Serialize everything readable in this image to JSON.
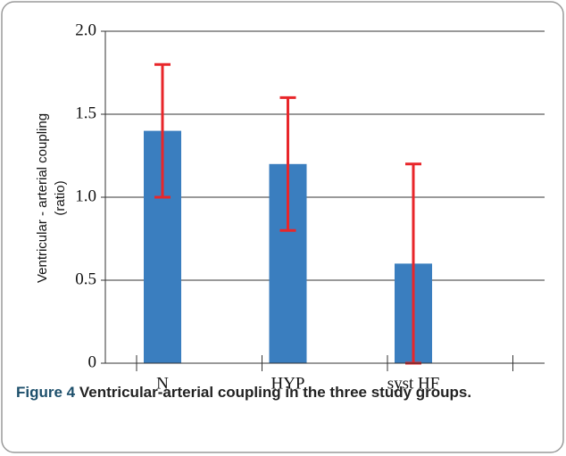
{
  "chart_data": {
    "type": "bar",
    "y_label": [
      "Ventricular - arterial coupling",
      "(ratio)"
    ],
    "categories": [
      "N",
      "HYP",
      "syst HF"
    ],
    "values": [
      1.4,
      1.2,
      0.6
    ],
    "errors": [
      0.4,
      0.4,
      0.6
    ],
    "color": "#3a7ebf",
    "error_color": "#e8262a",
    "ylim": [
      0,
      2
    ],
    "yticks": [
      0,
      0.5,
      {
        "value": 1,
        "label": "1.0"
      },
      1.5,
      {
        "value": 2,
        "label": "2.0"
      }
    ],
    "grid": true,
    "caption": {
      "label": "Figure 4",
      "text": "Ventricular-arterial coupling in the three study groups."
    }
  }
}
